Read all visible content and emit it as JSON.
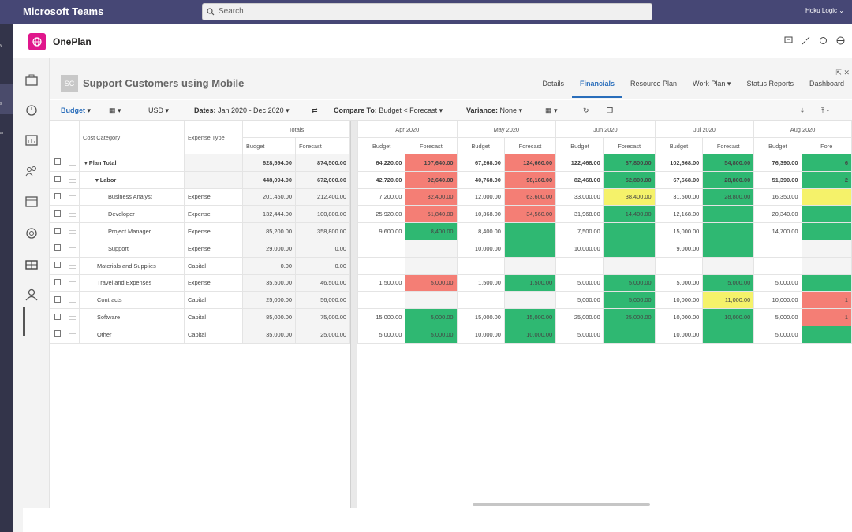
{
  "teams": {
    "title": "Microsoft Teams",
    "search_placeholder": "Search",
    "org": "Hoku Logic"
  },
  "rail": {
    "labels": [
      "y",
      "s",
      "ar"
    ]
  },
  "app": {
    "name": "OnePlan"
  },
  "plan": {
    "avatar": "SC",
    "title": "Support Customers using Mobile"
  },
  "tabs": [
    "Details",
    "Financials",
    "Resource Plan",
    "Work Plan",
    "Status Reports",
    "Dashboard"
  ],
  "active_tab": "Financials",
  "toolbar": {
    "budget": "Budget",
    "currency": "USD",
    "dates_label": "Dates:",
    "dates_value": "Jan 2020 - Dec 2020",
    "compare_label": "Compare To:",
    "compare_value": "Budget < Forecast",
    "variance_label": "Variance:",
    "variance_value": "None"
  },
  "left_headers": {
    "cost_category": "Cost Category",
    "expense_type": "Expense Type",
    "totals": "Totals",
    "budget": "Budget",
    "forecast": "Forecast"
  },
  "months": [
    "Apr 2020",
    "May 2020",
    "Jun 2020",
    "Jul 2020",
    "Aug 2020"
  ],
  "sub_headers": {
    "budget": "Budget",
    "forecast": "Forecast",
    "forecast_cut": "Fore"
  },
  "rows": [
    {
      "name": "Plan Total",
      "type": "",
      "tb": "628,594.00",
      "tf": "874,500.00",
      "cells": [
        "64,220.00",
        "107,640.00",
        "67,268.00",
        "124,660.00",
        "122,468.00",
        "87,800.00",
        "102,668.00",
        "54,800.00",
        "76,390.00",
        "6"
      ]
    },
    {
      "name": "Labor",
      "type": "",
      "tb": "448,094.00",
      "tf": "672,000.00",
      "cells": [
        "42,720.00",
        "92,640.00",
        "40,768.00",
        "98,160.00",
        "82,468.00",
        "52,800.00",
        "67,668.00",
        "28,800.00",
        "51,390.00",
        "2"
      ]
    },
    {
      "name": "Business Analyst",
      "type": "Expense",
      "tb": "201,450.00",
      "tf": "212,400.00",
      "cells": [
        "7,200.00",
        "32,400.00",
        "12,000.00",
        "63,600.00",
        "33,000.00",
        "38,400.00",
        "31,500.00",
        "28,800.00",
        "16,350.00",
        ""
      ]
    },
    {
      "name": "Developer",
      "type": "Expense",
      "tb": "132,444.00",
      "tf": "100,800.00",
      "cells": [
        "25,920.00",
        "51,840.00",
        "10,368.00",
        "34,560.00",
        "31,968.00",
        "14,400.00",
        "12,168.00",
        "",
        "20,340.00",
        ""
      ]
    },
    {
      "name": "Project Manager",
      "type": "Expense",
      "tb": "85,200.00",
      "tf": "358,800.00",
      "cells": [
        "9,600.00",
        "8,400.00",
        "8,400.00",
        "",
        "7,500.00",
        "",
        "15,000.00",
        "",
        "14,700.00",
        ""
      ]
    },
    {
      "name": "Support",
      "type": "Expense",
      "tb": "29,000.00",
      "tf": "0.00",
      "cells": [
        "",
        "",
        "10,000.00",
        "",
        "10,000.00",
        "",
        "9,000.00",
        "",
        "",
        ""
      ]
    },
    {
      "name": "Materials and Supplies",
      "type": "Capital",
      "tb": "0.00",
      "tf": "0.00",
      "cells": [
        "",
        "",
        "",
        "",
        "",
        "",
        "",
        "",
        "",
        ""
      ]
    },
    {
      "name": "Travel and Expenses",
      "type": "Expense",
      "tb": "35,500.00",
      "tf": "46,500.00",
      "cells": [
        "1,500.00",
        "5,000.00",
        "1,500.00",
        "1,500.00",
        "5,000.00",
        "5,000.00",
        "5,000.00",
        "5,000.00",
        "5,000.00",
        ""
      ]
    },
    {
      "name": "Contracts",
      "type": "Capital",
      "tb": "25,000.00",
      "tf": "56,000.00",
      "cells": [
        "",
        "",
        "",
        "",
        "5,000.00",
        "5,000.00",
        "10,000.00",
        "11,000.00",
        "10,000.00",
        "1"
      ]
    },
    {
      "name": "Software",
      "type": "Capital",
      "tb": "85,000.00",
      "tf": "75,000.00",
      "cells": [
        "15,000.00",
        "5,000.00",
        "15,000.00",
        "15,000.00",
        "25,000.00",
        "25,000.00",
        "10,000.00",
        "10,000.00",
        "5,000.00",
        "1"
      ]
    },
    {
      "name": "Other",
      "type": "Capital",
      "tb": "35,000.00",
      "tf": "25,000.00",
      "cells": [
        "5,000.00",
        "5,000.00",
        "10,000.00",
        "10,000.00",
        "5,000.00",
        "",
        "10,000.00",
        "",
        "5,000.00",
        ""
      ]
    }
  ],
  "colors": {
    "red": "#f47e75",
    "green": "#2fb872",
    "yellow": "#f5f26a",
    "grey": "#f4f4f4",
    "teams": "#464775",
    "accent": "#2a6ebb"
  },
  "cell_colors": [
    [
      "",
      "red",
      "",
      "red",
      "",
      "grn",
      "",
      "grn",
      "",
      "grn"
    ],
    [
      "",
      "red",
      "",
      "red",
      "",
      "grn",
      "",
      "grn",
      "",
      "grn"
    ],
    [
      "",
      "red",
      "",
      "red",
      "",
      "yel",
      "",
      "grn",
      "",
      "yel"
    ],
    [
      "",
      "red",
      "",
      "red",
      "",
      "grn",
      "",
      "grn",
      "",
      "grn"
    ],
    [
      "",
      "grn",
      "",
      "grn",
      "",
      "grn",
      "",
      "grn",
      "",
      "grn"
    ],
    [
      "",
      "gr",
      "",
      "grn",
      "",
      "grn",
      "",
      "grn",
      "",
      "gr"
    ],
    [
      "",
      "gr",
      "",
      "gr",
      "",
      "gr",
      "",
      "gr",
      "",
      "gr"
    ],
    [
      "",
      "red",
      "",
      "grn",
      "",
      "grn",
      "",
      "grn",
      "",
      "grn"
    ],
    [
      "",
      "gr",
      "",
      "gr",
      "",
      "grn",
      "",
      "yel",
      "",
      "red"
    ],
    [
      "",
      "grn",
      "",
      "grn",
      "",
      "grn",
      "",
      "grn",
      "",
      "red"
    ],
    [
      "",
      "grn",
      "",
      "grn",
      "",
      "grn",
      "",
      "grn",
      "",
      "grn"
    ]
  ]
}
